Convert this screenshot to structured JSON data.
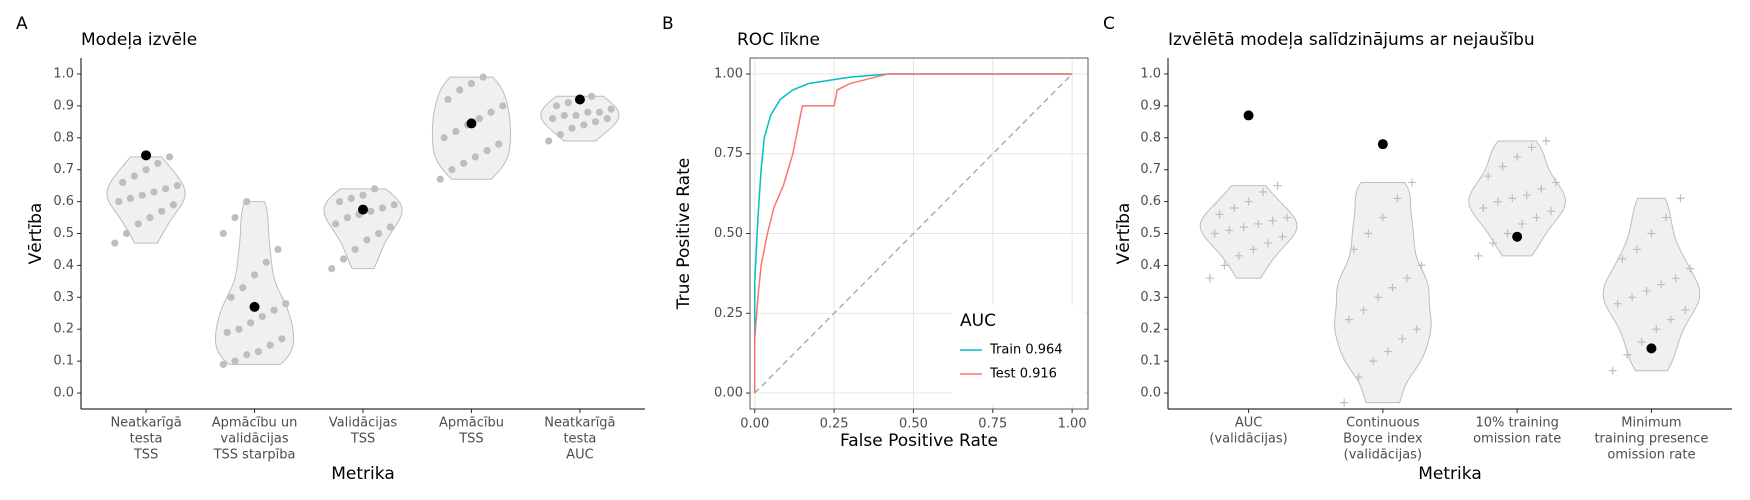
{
  "chart_data": [
    {
      "type": "violin",
      "label": "A",
      "title": "Modeļa izvēle",
      "xlabel": "Metrika",
      "ylabel": "Vērtība",
      "categories": [
        [
          "Neatkarīgā",
          "testa",
          "TSS"
        ],
        [
          "Apmācību un",
          "validācijas",
          "TSS starpība"
        ],
        [
          "Validācijas",
          "TSS"
        ],
        [
          "Apmācību",
          "TSS"
        ],
        [
          "Neatkarīgā",
          "testa",
          "AUC"
        ]
      ],
      "ylim": [
        -0.05,
        1.05
      ],
      "yticks": [
        {
          "value": 0,
          "label": "0.0"
        },
        0.1,
        0.2,
        0.3,
        0.4,
        0.5,
        0.6,
        0.7,
        0.8,
        0.9,
        {
          "value": 1,
          "label": "1.0"
        }
      ],
      "marker": "circle",
      "point_color": "#bebebe",
      "highlight_color": "#000000",
      "violin_fill": "#f0f0f0",
      "points": [
        [
          0.47,
          0.5,
          0.53,
          0.55,
          0.57,
          0.59,
          0.6,
          0.61,
          0.62,
          0.63,
          0.64,
          0.65,
          0.66,
          0.68,
          0.7,
          0.72,
          0.74
        ],
        [
          0.09,
          0.1,
          0.12,
          0.13,
          0.15,
          0.17,
          0.19,
          0.2,
          0.22,
          0.24,
          0.26,
          0.28,
          0.3,
          0.33,
          0.37,
          0.41,
          0.45,
          0.5,
          0.55,
          0.6
        ],
        [
          0.39,
          0.42,
          0.45,
          0.48,
          0.5,
          0.52,
          0.53,
          0.55,
          0.56,
          0.57,
          0.58,
          0.59,
          0.6,
          0.61,
          0.62,
          0.64
        ],
        [
          0.67,
          0.7,
          0.72,
          0.74,
          0.76,
          0.78,
          0.8,
          0.82,
          0.84,
          0.86,
          0.88,
          0.9,
          0.92,
          0.95,
          0.97,
          0.99
        ],
        [
          0.79,
          0.81,
          0.83,
          0.84,
          0.85,
          0.86,
          0.86,
          0.87,
          0.87,
          0.88,
          0.88,
          0.89,
          0.9,
          0.91,
          0.92,
          0.93
        ]
      ],
      "highlight": [
        0.745,
        0.27,
        0.575,
        0.845,
        0.92
      ]
    },
    {
      "type": "line",
      "label": "B",
      "title": "ROC līkne",
      "xlabel": "False Positive Rate",
      "ylabel": "True Positive Rate",
      "xlim": [
        -0.015,
        1.05
      ],
      "ylim": [
        -0.05,
        1.05
      ],
      "xticks": [
        {
          "value": 0,
          "label": "0.00"
        },
        0.25,
        {
          "value": 0.5,
          "label": "0.50"
        },
        0.75,
        {
          "value": 1,
          "label": "1.00"
        }
      ],
      "yticks": [
        {
          "value": 0,
          "label": "0.00"
        },
        0.25,
        {
          "value": 0.5,
          "label": "0.50"
        },
        0.75,
        {
          "value": 1,
          "label": "1.00"
        }
      ],
      "grid": true,
      "legend_title": "AUC",
      "legend_position": "bottom-right",
      "series": [
        {
          "name": "Train 0.964",
          "color": "#00BFC4",
          "x": [
            0,
            0,
            0.01,
            0.02,
            0.03,
            0.05,
            0.08,
            0.12,
            0.17,
            0.3,
            0.42,
            1
          ],
          "values": [
            0,
            0.35,
            0.55,
            0.7,
            0.8,
            0.87,
            0.92,
            0.95,
            0.97,
            0.99,
            1,
            1
          ]
        },
        {
          "name": "Test 0.916",
          "color": "#F8766D",
          "x": [
            0,
            0,
            0.01,
            0.02,
            0.04,
            0.06,
            0.09,
            0.12,
            0.14,
            0.15,
            0.25,
            0.26,
            0.3,
            0.42,
            1
          ],
          "values": [
            0,
            0.17,
            0.3,
            0.4,
            0.5,
            0.58,
            0.65,
            0.75,
            0.85,
            0.9,
            0.9,
            0.95,
            0.97,
            1,
            1
          ]
        }
      ]
    },
    {
      "type": "violin",
      "label": "C",
      "title": "Izvēlētā modeļa salīdzinājums ar nejaušību",
      "xlabel": "Metrika",
      "ylabel": "Vērtība",
      "categories": [
        [
          "AUC",
          "(validācijas)"
        ],
        [
          "Continuous",
          "Boyce index",
          "(validācijas)"
        ],
        [
          "10% training",
          "omission rate"
        ],
        [
          "Minimum",
          "training presence",
          "omission rate"
        ]
      ],
      "ylim": [
        -0.05,
        1.05
      ],
      "yticks": [
        {
          "value": 0,
          "label": "0.0"
        },
        0.1,
        0.2,
        0.3,
        0.4,
        0.5,
        0.6,
        0.7,
        0.8,
        0.9,
        {
          "value": 1,
          "label": "1.0"
        }
      ],
      "marker": "plus",
      "point_color": "#bebebe",
      "highlight_color": "#000000",
      "violin_fill": "#f0f0f0",
      "points": [
        [
          0.36,
          0.4,
          0.43,
          0.45,
          0.47,
          0.49,
          0.5,
          0.51,
          0.52,
          0.53,
          0.54,
          0.55,
          0.56,
          0.58,
          0.6,
          0.63,
          0.65
        ],
        [
          -0.03,
          0.05,
          0.1,
          0.13,
          0.17,
          0.2,
          0.23,
          0.26,
          0.3,
          0.33,
          0.36,
          0.4,
          0.45,
          0.5,
          0.55,
          0.61,
          0.66
        ],
        [
          0.43,
          0.47,
          0.5,
          0.53,
          0.55,
          0.57,
          0.58,
          0.6,
          0.61,
          0.62,
          0.64,
          0.66,
          0.68,
          0.71,
          0.74,
          0.77,
          0.79
        ],
        [
          0.07,
          0.12,
          0.16,
          0.2,
          0.23,
          0.26,
          0.28,
          0.3,
          0.32,
          0.34,
          0.36,
          0.39,
          0.42,
          0.45,
          0.5,
          0.55,
          0.61
        ]
      ],
      "highlight": [
        0.87,
        0.78,
        0.49,
        0.14
      ]
    }
  ]
}
